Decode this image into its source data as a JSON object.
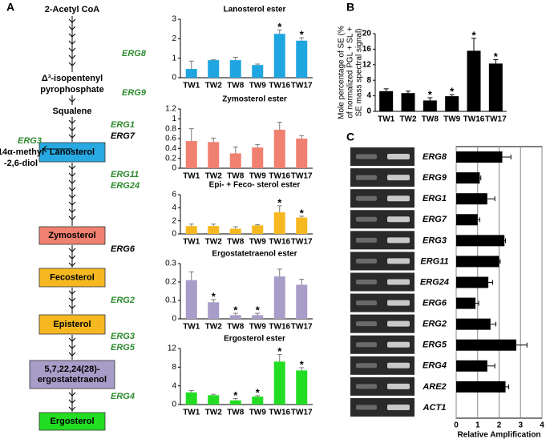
{
  "panel_labels": [
    "A",
    "B",
    "C"
  ],
  "pathway": {
    "nodes": [
      "2-Acetyl CoA",
      "Δ³-isopentenyl",
      "pyrophosphate",
      "Squalene"
    ],
    "boxes": [
      {
        "label": [
          "Lanosterol"
        ],
        "color": "#29a9e1"
      },
      {
        "label": [
          "Zymosterol"
        ],
        "color": "#f08070"
      },
      {
        "label": [
          "Fecosterol"
        ],
        "color": "#f5b820"
      },
      {
        "label": [
          "Episterol"
        ],
        "color": "#f5b820"
      },
      {
        "label": [
          "5,7,22,24(28)-",
          "ergostatetraenol"
        ],
        "color": "#a89cc8"
      },
      {
        "label": [
          "Ergosterol"
        ],
        "color": "#22dd22"
      }
    ],
    "enzymes": [
      {
        "name": "ERG8",
        "color": "#2e8b2e"
      },
      {
        "name": "ERG9",
        "color": "#2e8b2e"
      },
      {
        "name": "ERG1",
        "color": "#2e8b2e"
      },
      {
        "name": "ERG7",
        "color": "#000000"
      },
      {
        "name": "ERG3",
        "color": "#2e8b2e"
      },
      {
        "name": "ERG11",
        "color": "#2e8b2e"
      },
      {
        "name": "ERG24",
        "color": "#2e8b2e"
      },
      {
        "name": "ERG6",
        "color": "#000000"
      },
      {
        "name": "ERG2",
        "color": "#2e8b2e"
      },
      {
        "name": "ERG3",
        "color": "#2e8b2e"
      },
      {
        "name": "ERG5",
        "color": "#2e8b2e"
      },
      {
        "name": "ERG4",
        "color": "#2e8b2e"
      }
    ],
    "side_product": [
      "14α-methyl",
      "-2,6-diol"
    ]
  },
  "chart_data": [
    {
      "type": "bar",
      "title": "Lanosterol ester",
      "categories": [
        "TW1",
        "TW2",
        "TW8",
        "TW9",
        "TW16",
        "TW17"
      ],
      "values": [
        0.45,
        0.9,
        0.9,
        0.65,
        2.25,
        1.9
      ],
      "errors": [
        0.4,
        0.02,
        0.15,
        0.05,
        0.2,
        0.15
      ],
      "significance": [
        null,
        null,
        null,
        null,
        "*",
        "*"
      ],
      "color": "#1fa5e0",
      "ylim": [
        0,
        3
      ],
      "yticks": [
        0,
        1,
        2,
        3
      ]
    },
    {
      "type": "bar",
      "title": "Zymosterol ester",
      "categories": [
        "TW1",
        "TW2",
        "TW8",
        "TW9",
        "TW16",
        "TW17"
      ],
      "values": [
        0.55,
        0.53,
        0.3,
        0.42,
        0.78,
        0.6
      ],
      "errors": [
        0.25,
        0.08,
        0.13,
        0.06,
        0.15,
        0.06
      ],
      "significance": [
        null,
        null,
        null,
        null,
        null,
        null
      ],
      "color": "#f08070",
      "ylim": [
        0,
        1.2
      ],
      "yticks": [
        0,
        0.2,
        0.4,
        0.6,
        0.8,
        1,
        1.2
      ]
    },
    {
      "type": "bar",
      "title": "Epi- + Feco- sterol ester",
      "categories": [
        "TW1",
        "TW2",
        "TW8",
        "TW9",
        "TW16",
        "TW17"
      ],
      "values": [
        1.2,
        1.2,
        0.8,
        1.3,
        3.3,
        2.5
      ],
      "errors": [
        0.3,
        0.3,
        0.3,
        0.1,
        1.0,
        0.2
      ],
      "significance": [
        null,
        null,
        null,
        null,
        "*",
        "*"
      ],
      "color": "#f5b820",
      "ylim": [
        0,
        6
      ],
      "yticks": [
        0,
        2,
        4,
        6
      ]
    },
    {
      "type": "bar",
      "title": "Ergostatetraenol ester",
      "categories": [
        "TW1",
        "TW2",
        "TW8",
        "TW9",
        "TW16",
        "TW17"
      ],
      "values": [
        0.21,
        0.09,
        0.02,
        0.02,
        0.23,
        0.185
      ],
      "errors": [
        0.045,
        0.015,
        0.01,
        0.01,
        0.04,
        0.03
      ],
      "significance": [
        null,
        "*",
        "*",
        "*",
        null,
        null
      ],
      "color": "#a89cc8",
      "ylim": [
        0,
        0.3
      ],
      "yticks": [
        0,
        0.1,
        0.2,
        0.3
      ]
    },
    {
      "type": "bar",
      "title": "Ergosterol ester",
      "categories": [
        "TW1",
        "TW2",
        "TW8",
        "TW9",
        "TW16",
        "TW17"
      ],
      "values": [
        2.6,
        2.0,
        0.9,
        1.7,
        9.2,
        7.3
      ],
      "errors": [
        0.4,
        0.2,
        0.4,
        0.2,
        1.5,
        0.6
      ],
      "significance": [
        null,
        null,
        "*",
        "*",
        "*",
        "*"
      ],
      "color": "#22dd22",
      "ylim": [
        0,
        12
      ],
      "yticks": [
        0,
        4,
        8,
        12
      ]
    },
    {
      "type": "bar",
      "ylabel": [
        "Mole percentage of SE (%",
        "of normalized PGL + SL +",
        "SE mass spectral signal)"
      ],
      "categories": [
        "TW1",
        "TW2",
        "TW8",
        "TW9",
        "TW16",
        "TW17"
      ],
      "values": [
        5.2,
        4.7,
        2.8,
        3.9,
        15.6,
        12.3
      ],
      "errors": [
        0.6,
        0.5,
        0.7,
        0.4,
        3.2,
        1.0
      ],
      "significance": [
        null,
        null,
        "*",
        "*",
        "*",
        "*"
      ],
      "color": "#000000",
      "ylim": [
        0,
        20
      ],
      "yticks": [
        0,
        4,
        8,
        12,
        16,
        20
      ]
    },
    {
      "type": "barh",
      "xlabel": "Relative Amplification",
      "categories": [
        "ERG8",
        "ERG9",
        "ERG1",
        "ERG7",
        "ERG3",
        "ERG11",
        "ERG24",
        "ERG6",
        "ERG2",
        "ERG5",
        "ERG4",
        "ARE2",
        "ACT1"
      ],
      "values": [
        2.15,
        1.1,
        1.45,
        1.0,
        2.25,
        2.0,
        1.5,
        0.9,
        1.6,
        2.8,
        1.45,
        2.3,
        null
      ],
      "errors": [
        0.4,
        0.05,
        0.35,
        0.1,
        0.05,
        0.05,
        0.2,
        0.15,
        0.25,
        0.5,
        0.35,
        0.15,
        null
      ],
      "color": "#000000",
      "xlim": [
        0,
        4
      ],
      "xticks": [
        0,
        1,
        2,
        3,
        4
      ],
      "grid": true
    }
  ]
}
